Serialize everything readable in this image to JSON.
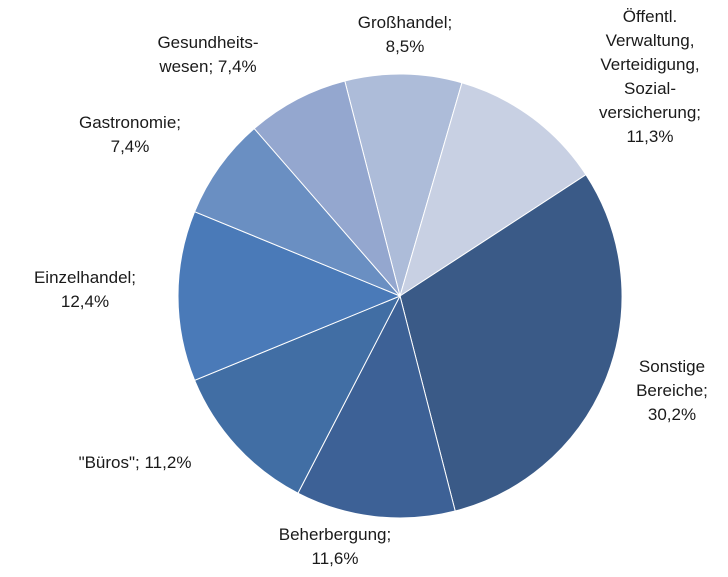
{
  "chart_data": {
    "type": "pie",
    "values": [
      8.5,
      11.3,
      30.2,
      11.6,
      11.2,
      12.4,
      7.4,
      7.4
    ],
    "value_labels": [
      "Großhandel;\n8,5%",
      "Öffentl.\nVerwaltung,\nVerteidigung,\nSozial-\nversicherung;\n11,3%",
      "Sonstige\nBereiche;\n30,2%",
      "Beherbergung;\n11,6%",
      "\"Büros\"; 11,2%",
      "Einzelhandel;\n12,4%",
      "Gastronomie;\n7,4%",
      "Gesundheits-\nwesen; 7,4%"
    ],
    "colors": [
      "#adbcd9",
      "#c8d0e3",
      "#3a5a87",
      "#3d6196",
      "#416ea4",
      "#4a7ab8",
      "#6a8fc2",
      "#94a7cf"
    ]
  }
}
